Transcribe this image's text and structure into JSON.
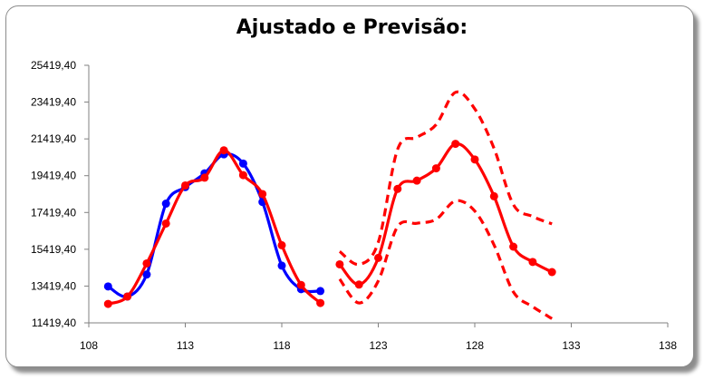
{
  "chart_data": {
    "type": "line",
    "title": "Ajustado e Previsão:",
    "xlabel": "",
    "ylabel": "",
    "xlim": [
      108,
      138
    ],
    "ylim": [
      11419.4,
      25419.4
    ],
    "x_ticks": [
      108,
      113,
      118,
      123,
      128,
      133,
      138
    ],
    "x_tick_labels": [
      "108",
      "113",
      "118",
      "123",
      "128",
      "133",
      "138"
    ],
    "y_ticks": [
      11419.4,
      13419.4,
      15419.4,
      17419.4,
      19419.4,
      21419.4,
      23419.4,
      25419.4
    ],
    "y_tick_labels": [
      "11419,40",
      "13419,40",
      "15419,40",
      "17419,40",
      "19419,40",
      "21419,40",
      "23419,40",
      "25419,40"
    ],
    "grid": false,
    "legend": "none",
    "series": [
      {
        "color": "#0000ff",
        "style": "solid",
        "markers": true,
        "x": [
          109,
          110,
          111,
          112,
          113,
          114,
          115,
          116,
          117,
          118,
          119,
          120
        ],
        "y": [
          13400,
          12850,
          14050,
          17900,
          18800,
          19550,
          20580,
          20080,
          17990,
          14530,
          13250,
          13150
        ]
      },
      {
        "color": "#ff0000",
        "style": "solid",
        "markers": true,
        "x": [
          109,
          110,
          111,
          112,
          113,
          114,
          115,
          116,
          117,
          118,
          119,
          120
        ],
        "y": [
          12450,
          12850,
          14650,
          16820,
          18890,
          19310,
          20800,
          19450,
          18420,
          15640,
          13480,
          12500
        ]
      },
      {
        "color": "#ff0000",
        "style": "solid",
        "markers": true,
        "x": [
          121,
          122,
          123,
          124,
          125,
          126,
          127,
          128,
          129,
          130,
          131,
          132
        ],
        "y": [
          14600,
          13500,
          14950,
          18700,
          19150,
          19820,
          21150,
          20300,
          18300,
          15560,
          14730,
          14180
        ]
      },
      {
        "color": "#ff0000",
        "style": "dashed",
        "markers": false,
        "x": [
          121,
          122,
          123,
          124,
          125,
          126,
          127,
          128,
          129,
          130,
          131,
          132
        ],
        "y": [
          15300,
          14600,
          15800,
          20850,
          21500,
          22200,
          23950,
          23050,
          20900,
          17850,
          17200,
          16800
        ]
      },
      {
        "color": "#ff0000",
        "style": "dashed",
        "markers": false,
        "x": [
          121,
          122,
          123,
          124,
          125,
          126,
          127,
          128,
          129,
          130,
          131,
          132
        ],
        "y": [
          13800,
          12500,
          13700,
          16650,
          16830,
          17050,
          18050,
          17500,
          15650,
          13100,
          12300,
          11650
        ]
      }
    ]
  }
}
